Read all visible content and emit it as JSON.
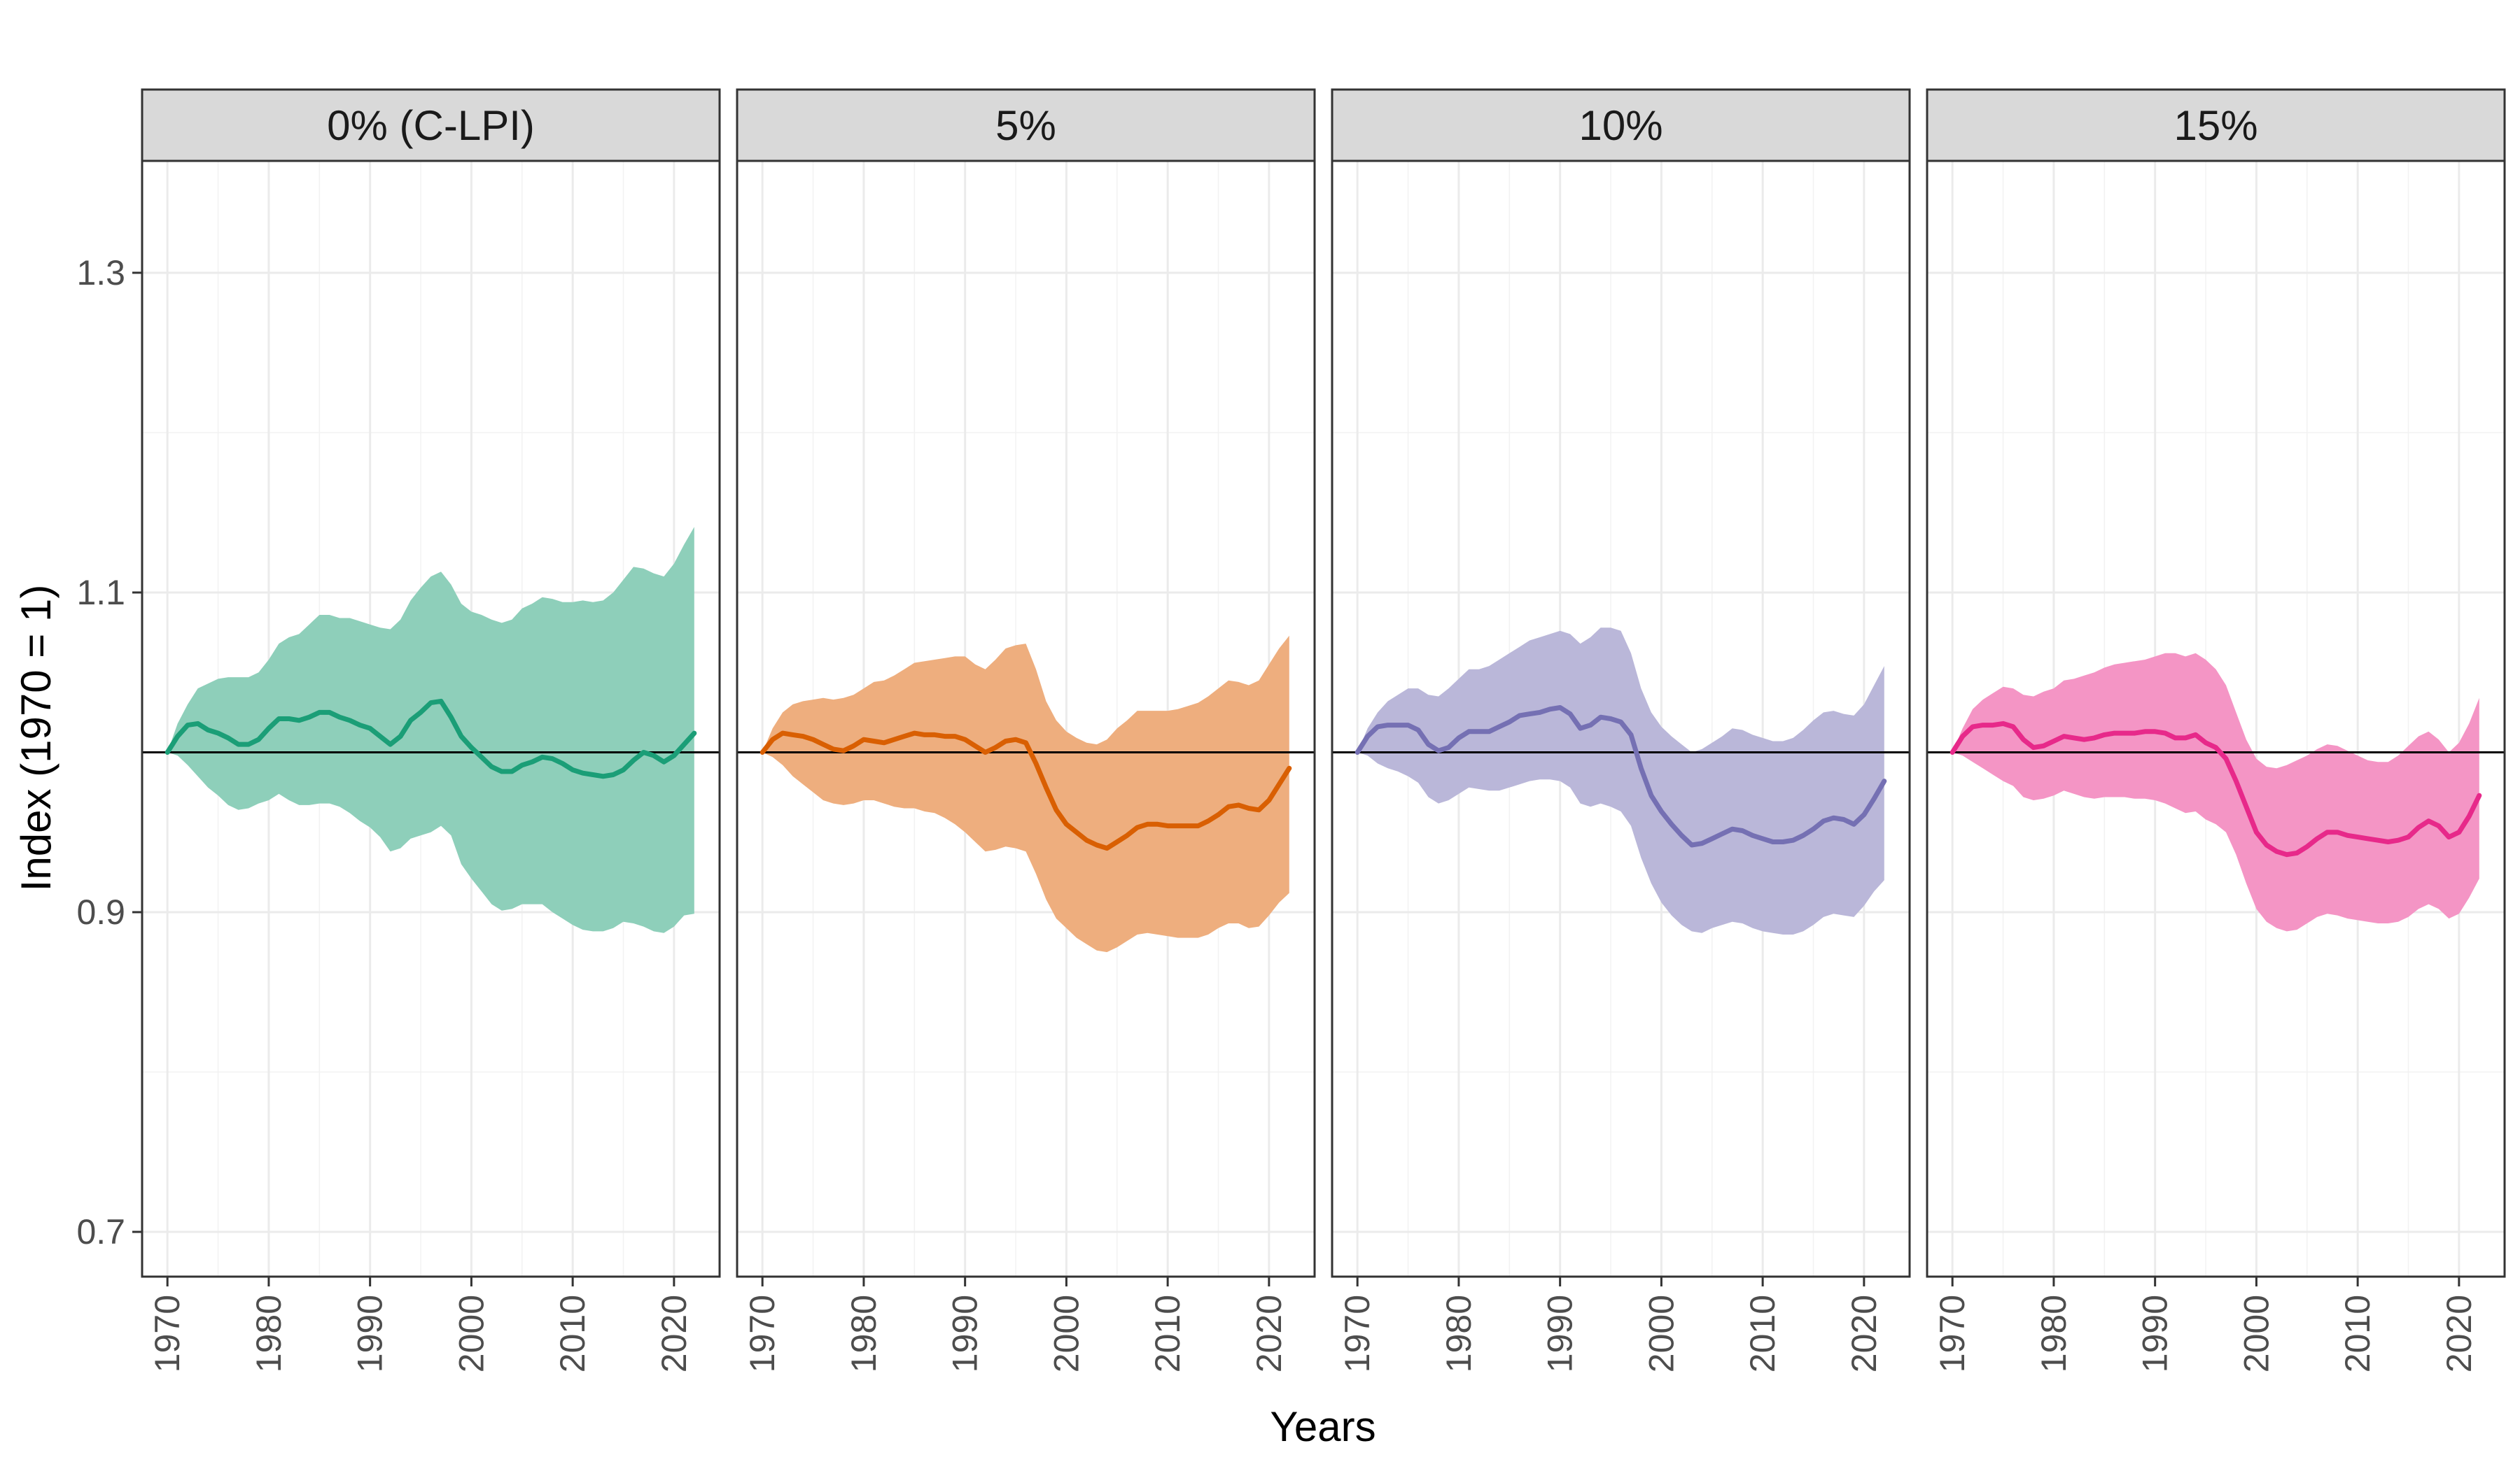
{
  "chart_data": {
    "type": "area",
    "xlabel": "Years",
    "ylabel": "Index (1970 = 1)",
    "xlim": [
      1967.5,
      2024.5
    ],
    "ylim": [
      0.672,
      1.37
    ],
    "x_ticks": [
      1970,
      1980,
      1990,
      2000,
      2010,
      2020
    ],
    "y_ticks": [
      0.7,
      0.9,
      1.1,
      1.3
    ],
    "y_tick_labels": [
      "0.7",
      "0.9",
      "1.1",
      "1.3"
    ],
    "reference_line": 1.0,
    "grid": true,
    "x": [
      1970,
      1971,
      1972,
      1973,
      1974,
      1975,
      1976,
      1977,
      1978,
      1979,
      1980,
      1981,
      1982,
      1983,
      1984,
      1985,
      1986,
      1987,
      1988,
      1989,
      1990,
      1991,
      1992,
      1993,
      1994,
      1995,
      1996,
      1997,
      1998,
      1999,
      2000,
      2001,
      2002,
      2003,
      2004,
      2005,
      2006,
      2007,
      2008,
      2009,
      2010,
      2011,
      2012,
      2013,
      2014,
      2015,
      2016,
      2017,
      2018,
      2019,
      2020,
      2021,
      2022
    ],
    "panels": [
      {
        "label": "0% (C-LPI)",
        "color": "#1b9e77",
        "fill": "#8ecfba",
        "mean": [
          1.0,
          1.01,
          1.017,
          1.018,
          1.014,
          1.012,
          1.009,
          1.005,
          1.005,
          1.008,
          1.015,
          1.021,
          1.021,
          1.02,
          1.022,
          1.025,
          1.025,
          1.022,
          1.02,
          1.017,
          1.015,
          1.01,
          1.005,
          1.01,
          1.02,
          1.025,
          1.031,
          1.032,
          1.022,
          1.01,
          1.003,
          0.997,
          0.991,
          0.988,
          0.988,
          0.992,
          0.994,
          0.997,
          0.996,
          0.993,
          0.989,
          0.987,
          0.986,
          0.985,
          0.986,
          0.989,
          0.995,
          1.0,
          0.998,
          0.994,
          0.998,
          1.005,
          1.012
        ],
        "upper": [
          1.0,
          1.018,
          1.03,
          1.04,
          1.043,
          1.046,
          1.047,
          1.047,
          1.047,
          1.05,
          1.058,
          1.068,
          1.072,
          1.074,
          1.08,
          1.086,
          1.086,
          1.084,
          1.084,
          1.082,
          1.08,
          1.078,
          1.077,
          1.083,
          1.095,
          1.103,
          1.11,
          1.113,
          1.105,
          1.093,
          1.088,
          1.086,
          1.083,
          1.081,
          1.083,
          1.09,
          1.093,
          1.097,
          1.096,
          1.094,
          1.094,
          1.095,
          1.094,
          1.095,
          1.1,
          1.108,
          1.116,
          1.115,
          1.112,
          1.11,
          1.118,
          1.13,
          1.141
        ],
        "lower": [
          1.0,
          0.998,
          0.992,
          0.985,
          0.978,
          0.973,
          0.967,
          0.964,
          0.965,
          0.968,
          0.97,
          0.974,
          0.97,
          0.967,
          0.967,
          0.968,
          0.968,
          0.966,
          0.962,
          0.957,
          0.953,
          0.947,
          0.938,
          0.94,
          0.946,
          0.948,
          0.95,
          0.954,
          0.948,
          0.93,
          0.921,
          0.913,
          0.905,
          0.901,
          0.902,
          0.905,
          0.905,
          0.905,
          0.9,
          0.896,
          0.892,
          0.889,
          0.888,
          0.888,
          0.89,
          0.894,
          0.893,
          0.891,
          0.888,
          0.887,
          0.891,
          0.898,
          0.899
        ]
      },
      {
        "label": "5%",
        "color": "#d95f02",
        "fill": "#eeae7e",
        "mean": [
          1.0,
          1.008,
          1.012,
          1.011,
          1.01,
          1.008,
          1.005,
          1.002,
          1.001,
          1.004,
          1.008,
          1.007,
          1.006,
          1.008,
          1.01,
          1.012,
          1.011,
          1.011,
          1.01,
          1.01,
          1.008,
          1.004,
          1.0,
          1.003,
          1.007,
          1.008,
          1.006,
          0.993,
          0.978,
          0.964,
          0.955,
          0.95,
          0.945,
          0.942,
          0.94,
          0.944,
          0.948,
          0.953,
          0.955,
          0.955,
          0.954,
          0.954,
          0.954,
          0.954,
          0.957,
          0.961,
          0.966,
          0.967,
          0.965,
          0.964,
          0.97,
          0.98,
          0.99
        ],
        "upper": [
          1.0,
          1.015,
          1.025,
          1.03,
          1.032,
          1.033,
          1.034,
          1.033,
          1.034,
          1.036,
          1.04,
          1.044,
          1.045,
          1.048,
          1.052,
          1.056,
          1.057,
          1.058,
          1.059,
          1.06,
          1.06,
          1.055,
          1.052,
          1.058,
          1.065,
          1.067,
          1.068,
          1.052,
          1.032,
          1.02,
          1.013,
          1.009,
          1.006,
          1.005,
          1.008,
          1.015,
          1.02,
          1.026,
          1.026,
          1.026,
          1.026,
          1.027,
          1.029,
          1.031,
          1.035,
          1.04,
          1.045,
          1.044,
          1.042,
          1.045,
          1.055,
          1.065,
          1.073
        ],
        "lower": [
          1.0,
          0.997,
          0.992,
          0.985,
          0.98,
          0.975,
          0.97,
          0.968,
          0.967,
          0.968,
          0.97,
          0.97,
          0.968,
          0.966,
          0.965,
          0.965,
          0.963,
          0.962,
          0.959,
          0.955,
          0.95,
          0.944,
          0.938,
          0.939,
          0.941,
          0.94,
          0.938,
          0.924,
          0.908,
          0.896,
          0.89,
          0.884,
          0.88,
          0.876,
          0.875,
          0.878,
          0.882,
          0.886,
          0.887,
          0.886,
          0.885,
          0.884,
          0.884,
          0.884,
          0.886,
          0.89,
          0.893,
          0.893,
          0.89,
          0.891,
          0.898,
          0.906,
          0.912
        ]
      },
      {
        "label": "10%",
        "color": "#7570b3",
        "fill": "#bab7d9",
        "mean": [
          1.0,
          1.01,
          1.016,
          1.017,
          1.017,
          1.017,
          1.014,
          1.005,
          1.001,
          1.003,
          1.009,
          1.013,
          1.013,
          1.013,
          1.016,
          1.019,
          1.023,
          1.024,
          1.025,
          1.027,
          1.028,
          1.024,
          1.015,
          1.017,
          1.022,
          1.021,
          1.019,
          1.011,
          0.99,
          0.973,
          0.963,
          0.955,
          0.948,
          0.942,
          0.943,
          0.946,
          0.949,
          0.952,
          0.951,
          0.948,
          0.946,
          0.944,
          0.944,
          0.945,
          0.948,
          0.952,
          0.957,
          0.959,
          0.958,
          0.955,
          0.961,
          0.971,
          0.982
        ],
        "upper": [
          1.0,
          1.015,
          1.025,
          1.032,
          1.036,
          1.04,
          1.04,
          1.036,
          1.035,
          1.04,
          1.046,
          1.052,
          1.052,
          1.054,
          1.058,
          1.062,
          1.066,
          1.07,
          1.072,
          1.074,
          1.076,
          1.074,
          1.068,
          1.072,
          1.078,
          1.078,
          1.076,
          1.062,
          1.04,
          1.025,
          1.016,
          1.01,
          1.005,
          1.0,
          1.002,
          1.006,
          1.01,
          1.015,
          1.014,
          1.011,
          1.009,
          1.007,
          1.007,
          1.009,
          1.014,
          1.02,
          1.025,
          1.026,
          1.024,
          1.023,
          1.03,
          1.042,
          1.054
        ],
        "lower": [
          1.0,
          0.998,
          0.993,
          0.99,
          0.988,
          0.985,
          0.981,
          0.972,
          0.968,
          0.97,
          0.974,
          0.978,
          0.977,
          0.976,
          0.976,
          0.978,
          0.98,
          0.982,
          0.983,
          0.983,
          0.982,
          0.978,
          0.968,
          0.966,
          0.968,
          0.966,
          0.963,
          0.954,
          0.934,
          0.918,
          0.906,
          0.898,
          0.892,
          0.888,
          0.887,
          0.89,
          0.892,
          0.894,
          0.893,
          0.89,
          0.888,
          0.887,
          0.886,
          0.886,
          0.888,
          0.892,
          0.897,
          0.899,
          0.898,
          0.897,
          0.904,
          0.913,
          0.92
        ]
      },
      {
        "label": "15%",
        "color": "#e7298a",
        "fill": "#f495c5",
        "mean": [
          1.0,
          1.01,
          1.016,
          1.017,
          1.017,
          1.018,
          1.016,
          1.008,
          1.003,
          1.004,
          1.007,
          1.01,
          1.009,
          1.008,
          1.009,
          1.011,
          1.012,
          1.012,
          1.012,
          1.013,
          1.013,
          1.012,
          1.009,
          1.009,
          1.011,
          1.006,
          1.003,
          0.996,
          0.982,
          0.966,
          0.95,
          0.942,
          0.938,
          0.936,
          0.937,
          0.941,
          0.946,
          0.95,
          0.95,
          0.948,
          0.947,
          0.946,
          0.945,
          0.944,
          0.945,
          0.947,
          0.953,
          0.957,
          0.954,
          0.947,
          0.95,
          0.96,
          0.973
        ],
        "upper": [
          1.0,
          1.015,
          1.027,
          1.033,
          1.037,
          1.041,
          1.04,
          1.036,
          1.035,
          1.038,
          1.04,
          1.045,
          1.046,
          1.048,
          1.05,
          1.053,
          1.055,
          1.056,
          1.057,
          1.058,
          1.06,
          1.062,
          1.062,
          1.06,
          1.062,
          1.058,
          1.052,
          1.042,
          1.025,
          1.008,
          0.996,
          0.991,
          0.99,
          0.992,
          0.995,
          0.998,
          1.002,
          1.005,
          1.004,
          1.001,
          0.998,
          0.995,
          0.994,
          0.994,
          0.998,
          1.004,
          1.01,
          1.013,
          1.008,
          1.0,
          1.006,
          1.018,
          1.034
        ],
        "lower": [
          1.0,
          0.998,
          0.994,
          0.99,
          0.986,
          0.982,
          0.979,
          0.972,
          0.97,
          0.971,
          0.973,
          0.976,
          0.974,
          0.972,
          0.971,
          0.972,
          0.972,
          0.972,
          0.971,
          0.971,
          0.97,
          0.968,
          0.965,
          0.962,
          0.963,
          0.958,
          0.955,
          0.95,
          0.936,
          0.918,
          0.902,
          0.894,
          0.89,
          0.888,
          0.889,
          0.893,
          0.897,
          0.899,
          0.898,
          0.896,
          0.895,
          0.894,
          0.893,
          0.893,
          0.894,
          0.897,
          0.902,
          0.905,
          0.902,
          0.896,
          0.899,
          0.909,
          0.921
        ]
      }
    ]
  }
}
